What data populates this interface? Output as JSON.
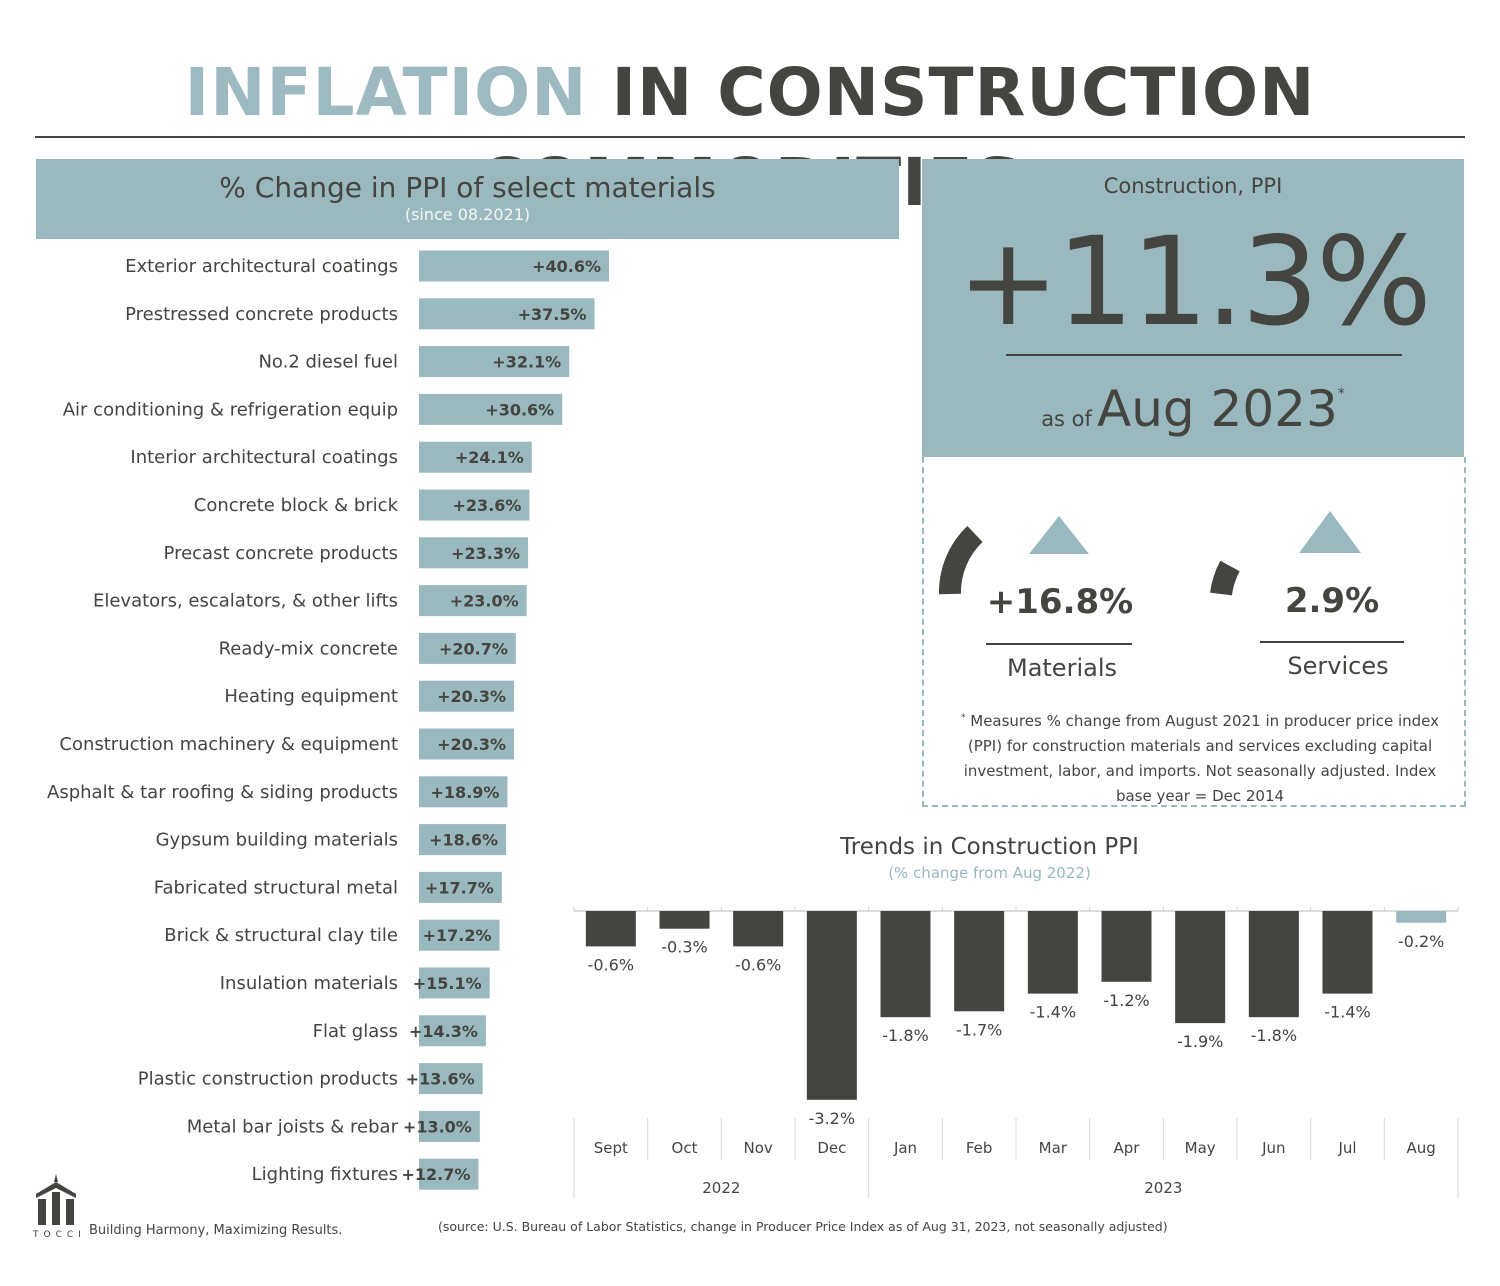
{
  "title": {
    "part1": "INFLATION",
    "part2": "IN CONSTRUCTION COMMODITIES"
  },
  "ppi_panel": {
    "title": "% Change in PPI of select materials",
    "subtitle": "(since 08.2021)"
  },
  "kpi": {
    "label": "Construction, PPI",
    "value": "+11.3%",
    "as_of_prefix": "as of",
    "as_of": "Aug 2023",
    "asterisk": "*"
  },
  "sub_kpis": [
    {
      "value": "+16.8%",
      "label": "Materials"
    },
    {
      "value": "2.9%",
      "label": "Services"
    }
  ],
  "footnote": {
    "marker": "*",
    "text": "Measures % change from August 2021 in producer price index (PPI) for construction materials and services excluding capital investment, labor, and imports. Not seasonally adjusted. Index base year = Dec 2014"
  },
  "trend": {
    "title": "Trends in Construction PPI",
    "subtitle": "(% change from Aug 2022)"
  },
  "logo_text": "TOCCI",
  "tagline": "Building Harmony, Maximizing Results.",
  "source": "(source: U.S. Bureau of Labor Statistics, change in Producer Price Index as of Aug 31, 2023, not seasonally adjusted)",
  "colors": {
    "accent": "#9ab9bf",
    "dark": "#444441"
  },
  "chart_data": [
    {
      "type": "bar",
      "orientation": "horizontal",
      "title": "% Change in PPI of select materials",
      "subtitle": "(since 08.2021)",
      "categories": [
        "Exterior architectural coatings",
        "Prestressed concrete products",
        "No.2 diesel fuel",
        "Air conditioning & refrigeration equip",
        "Interior architectural coatings",
        "Concrete block & brick",
        "Precast concrete products",
        "Elevators, escalators, & other lifts",
        "Ready-mix concrete",
        "Heating equipment",
        "Construction machinery & equipment",
        "Asphalt & tar roofing & siding products",
        "Gypsum building materials",
        "Fabricated structural metal",
        "Brick & structural clay tile",
        "Insulation materials",
        "Flat glass",
        "Plastic construction products",
        "Metal bar joists & rebar",
        "Lighting fixtures"
      ],
      "values": [
        40.6,
        37.5,
        32.1,
        30.6,
        24.1,
        23.6,
        23.3,
        23.0,
        20.7,
        20.3,
        20.3,
        18.9,
        18.6,
        17.7,
        17.2,
        15.1,
        14.3,
        13.6,
        13.0,
        12.7
      ],
      "labels": [
        "+40.6%",
        "+37.5%",
        "+32.1%",
        "+30.6%",
        "+24.1%",
        "+23.6%",
        "+23.3%",
        "+23.0%",
        "+20.7%",
        "+20.3%",
        "+20.3%",
        "+18.9%",
        "+18.6%",
        "+17.7%",
        "+17.2%",
        "+15.1%",
        "+14.3%",
        "+13.6%",
        "+13.0%",
        "+12.7%"
      ]
    },
    {
      "type": "bar",
      "title": "Trends in Construction PPI",
      "subtitle": "(% change from Aug 2022)",
      "categories": [
        "Sept",
        "Oct",
        "Nov",
        "Dec",
        "Jan",
        "Feb",
        "Mar",
        "Apr",
        "May",
        "Jun",
        "Jul",
        "Aug"
      ],
      "values": [
        -0.6,
        -0.3,
        -0.6,
        -3.2,
        -1.8,
        -1.7,
        -1.4,
        -1.2,
        -1.9,
        -1.8,
        -1.4,
        -0.2
      ],
      "labels": [
        "-0.6%",
        "-0.3%",
        "-0.6%",
        "-3.2%",
        "-1.8%",
        "-1.7%",
        "-1.4%",
        "-1.2%",
        "-1.9%",
        "-1.8%",
        "-1.4%",
        "-0.2%"
      ],
      "highlight_index": 11,
      "groups": [
        {
          "label": "2022",
          "count": 4
        },
        {
          "label": "2023",
          "count": 8
        }
      ]
    }
  ]
}
